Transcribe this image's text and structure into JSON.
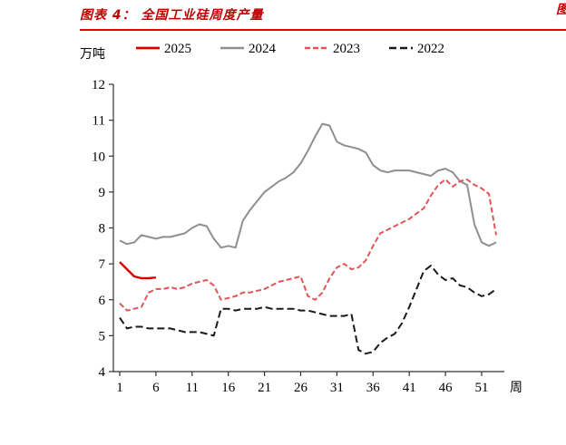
{
  "header": {
    "title": "图表 4： 全国工业硅周度产量",
    "cropped_right_text": "图表",
    "rule_color": "#e60000",
    "title_color": "#c00000"
  },
  "chart_data": {
    "type": "line",
    "title": "全国工业硅周度产量",
    "ylabel": "万吨",
    "xlabel": "周",
    "ylim": [
      4,
      12
    ],
    "xlim": [
      1,
      53
    ],
    "y_ticks": [
      4,
      5,
      6,
      7,
      8,
      9,
      10,
      11,
      12
    ],
    "x_ticks": [
      1,
      6,
      11,
      16,
      21,
      26,
      31,
      36,
      41,
      46,
      51
    ],
    "grid": false,
    "legend_position": "top",
    "axis_color": "#333333",
    "series": [
      {
        "name": "2025",
        "color": "#d40000",
        "dash": "",
        "width": 2.4,
        "x_start": 1,
        "values": [
          7.05,
          6.85,
          6.65,
          6.6,
          6.6,
          6.62
        ]
      },
      {
        "name": "2024",
        "color": "#8f8f8f",
        "dash": "",
        "width": 2,
        "x_start": 1,
        "values": [
          7.65,
          7.55,
          7.6,
          7.8,
          7.75,
          7.7,
          7.75,
          7.75,
          7.8,
          7.85,
          8.0,
          8.1,
          8.05,
          7.7,
          7.45,
          7.5,
          7.45,
          8.2,
          8.5,
          8.75,
          9.0,
          9.15,
          9.3,
          9.4,
          9.55,
          9.8,
          10.15,
          10.55,
          10.9,
          10.85,
          10.4,
          10.3,
          10.25,
          10.2,
          10.1,
          9.75,
          9.6,
          9.55,
          9.6,
          9.6,
          9.6,
          9.55,
          9.5,
          9.45,
          9.6,
          9.65,
          9.55,
          9.3,
          9.2,
          8.1,
          7.6,
          7.5,
          7.6
        ]
      },
      {
        "name": "2023",
        "color": "#e05555",
        "dash": "6 3",
        "width": 2,
        "x_start": 1,
        "values": [
          5.9,
          5.7,
          5.75,
          5.8,
          6.2,
          6.3,
          6.3,
          6.35,
          6.3,
          6.35,
          6.45,
          6.5,
          6.55,
          6.4,
          6.0,
          6.05,
          6.1,
          6.2,
          6.2,
          6.25,
          6.3,
          6.4,
          6.5,
          6.55,
          6.6,
          6.65,
          6.1,
          6.0,
          6.2,
          6.6,
          6.9,
          7.0,
          6.85,
          6.9,
          7.1,
          7.5,
          7.85,
          7.95,
          8.05,
          8.15,
          8.25,
          8.4,
          8.55,
          8.9,
          9.2,
          9.35,
          9.15,
          9.3,
          9.35,
          9.2,
          9.1,
          8.95,
          7.8
        ]
      },
      {
        "name": "2022",
        "color": "#1a1a1a",
        "dash": "8 4",
        "width": 2,
        "x_start": 1,
        "values": [
          5.5,
          5.2,
          5.25,
          5.25,
          5.2,
          5.2,
          5.2,
          5.2,
          5.15,
          5.1,
          5.1,
          5.1,
          5.05,
          5.0,
          5.75,
          5.75,
          5.7,
          5.75,
          5.75,
          5.75,
          5.8,
          5.75,
          5.75,
          5.75,
          5.75,
          5.7,
          5.7,
          5.65,
          5.6,
          5.55,
          5.55,
          5.55,
          5.6,
          4.6,
          4.5,
          4.55,
          4.8,
          4.95,
          5.05,
          5.35,
          5.8,
          6.3,
          6.8,
          6.95,
          6.7,
          6.55,
          6.6,
          6.4,
          6.35,
          6.2,
          6.1,
          6.15,
          6.3
        ]
      }
    ]
  }
}
